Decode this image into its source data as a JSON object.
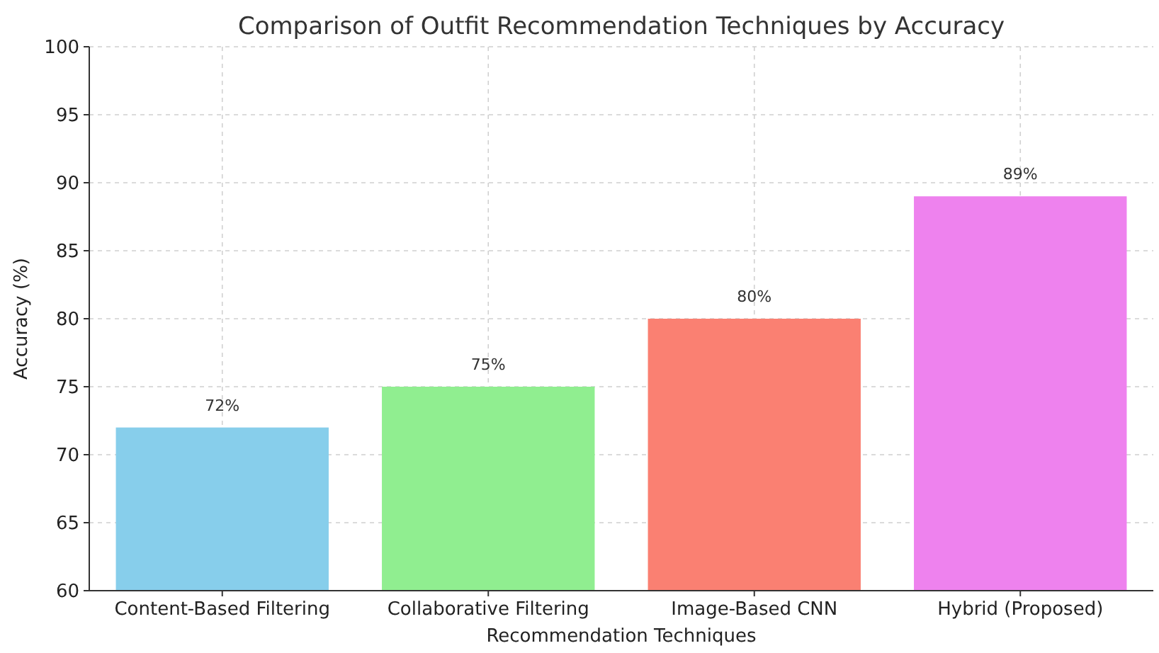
{
  "chart_data": {
    "type": "bar",
    "title": "Comparison of Outfit Recommendation Techniques by Accuracy",
    "xlabel": "Recommendation Techniques",
    "ylabel": "Accuracy (%)",
    "categories": [
      "Content-Based Filtering",
      "Collaborative Filtering",
      "Image-Based CNN",
      "Hybrid (Proposed)"
    ],
    "values": [
      72,
      75,
      80,
      89
    ],
    "colors": [
      "#87ceeb",
      "#90ee90",
      "#fa8072",
      "#ee82ee"
    ],
    "value_labels": [
      "72%",
      "75%",
      "80%",
      "89%"
    ],
    "ylim": [
      60,
      100
    ],
    "yticks": [
      60,
      65,
      70,
      75,
      80,
      85,
      90,
      95,
      100
    ],
    "grid": true
  }
}
